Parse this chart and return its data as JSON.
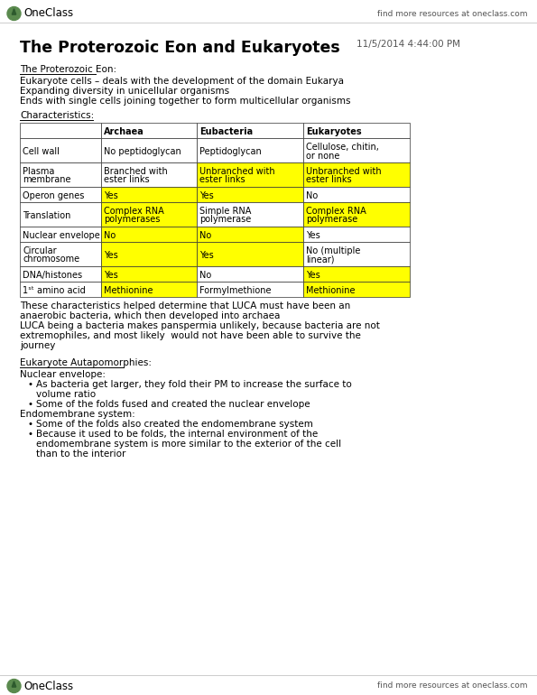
{
  "bg_color": "#ffffff",
  "page_width": 5.95,
  "page_height": 7.7,
  "dpi": 100,
  "header_logo_text": "OneClass",
  "header_right_text": "find more resources at oneclass.com",
  "footer_logo_text": "OneClass",
  "footer_right_text": "find more resources at oneclass.com",
  "title_text": "The Proterozoic Eon and Eukaryotes",
  "title_date": "11/5/2014 4:44:00 PM",
  "section1_heading": "The Proterozoic Eon:",
  "section1_lines": [
    "Eukaryote cells – deals with the development of the domain Eukarya",
    "Expanding diversity in unicellular organisms",
    "Ends with single cells joining together to form multicellular organisms"
  ],
  "characteristics_heading": "Characteristics:",
  "post_table_lines": [
    "These characteristics helped determine that LUCA must have been an",
    "anaerobic bacteria, which then developed into archaea",
    "LUCA being a bacteria makes panspermia unlikely, because bacteria are not",
    "extremophiles, and most likely  would not have been able to survive the",
    "journey"
  ],
  "section2_heading": "Eukaryote Autapomorphies:",
  "section2_content": [
    {
      "type": "label",
      "text": "Nuclear envelope:"
    },
    {
      "type": "bullet",
      "text": "As bacteria get larger, they fold their PM to increase the surface to\nvolume ratio"
    },
    {
      "type": "bullet",
      "text": "Some of the folds fused and created the nuclear envelope"
    },
    {
      "type": "label",
      "text": "Endomembrane system:"
    },
    {
      "type": "bullet",
      "text": "Some of the folds also created the endomembrane system"
    },
    {
      "type": "bullet",
      "text": "Because it used to be folds, the internal environment of the\nendomembrane system is more similar to the exterior of the cell\nthan to the interior"
    }
  ],
  "highlight_yellow": "#ffff00",
  "table_data": [
    [
      "",
      "Archaea",
      "Eubacteria",
      "Eukaryotes"
    ],
    [
      "Cell wall",
      "No peptidoglycan",
      "Peptidoglycan",
      "Cellulose, chitin,\nor none"
    ],
    [
      "Plasma\nmembrane",
      "Branched with\nester links",
      "Unbranched with\nester links",
      "Unbranched with\nester links"
    ],
    [
      "Operon genes",
      "Yes",
      "Yes",
      "No"
    ],
    [
      "Translation",
      "Complex RNA\npolymerases",
      "Simple RNA\npolymerase",
      "Complex RNA\npolymerase"
    ],
    [
      "Nuclear envelope",
      "No",
      "No",
      "Yes"
    ],
    [
      "Circular\nchromosome",
      "Yes",
      "Yes",
      "No (multiple\nlinear)"
    ],
    [
      "DNA/histones",
      "Yes",
      "No",
      "Yes"
    ],
    [
      "1ˢᵗ amino acid",
      "Methionine",
      "Formylmethione",
      "Methionine"
    ]
  ],
  "table_highlights": [
    [
      false,
      false,
      false,
      false
    ],
    [
      false,
      false,
      false,
      false
    ],
    [
      false,
      false,
      true,
      true
    ],
    [
      false,
      true,
      true,
      false
    ],
    [
      false,
      true,
      false,
      true
    ],
    [
      false,
      true,
      true,
      false
    ],
    [
      false,
      true,
      true,
      false
    ],
    [
      false,
      true,
      false,
      true
    ],
    [
      false,
      true,
      false,
      true
    ]
  ]
}
